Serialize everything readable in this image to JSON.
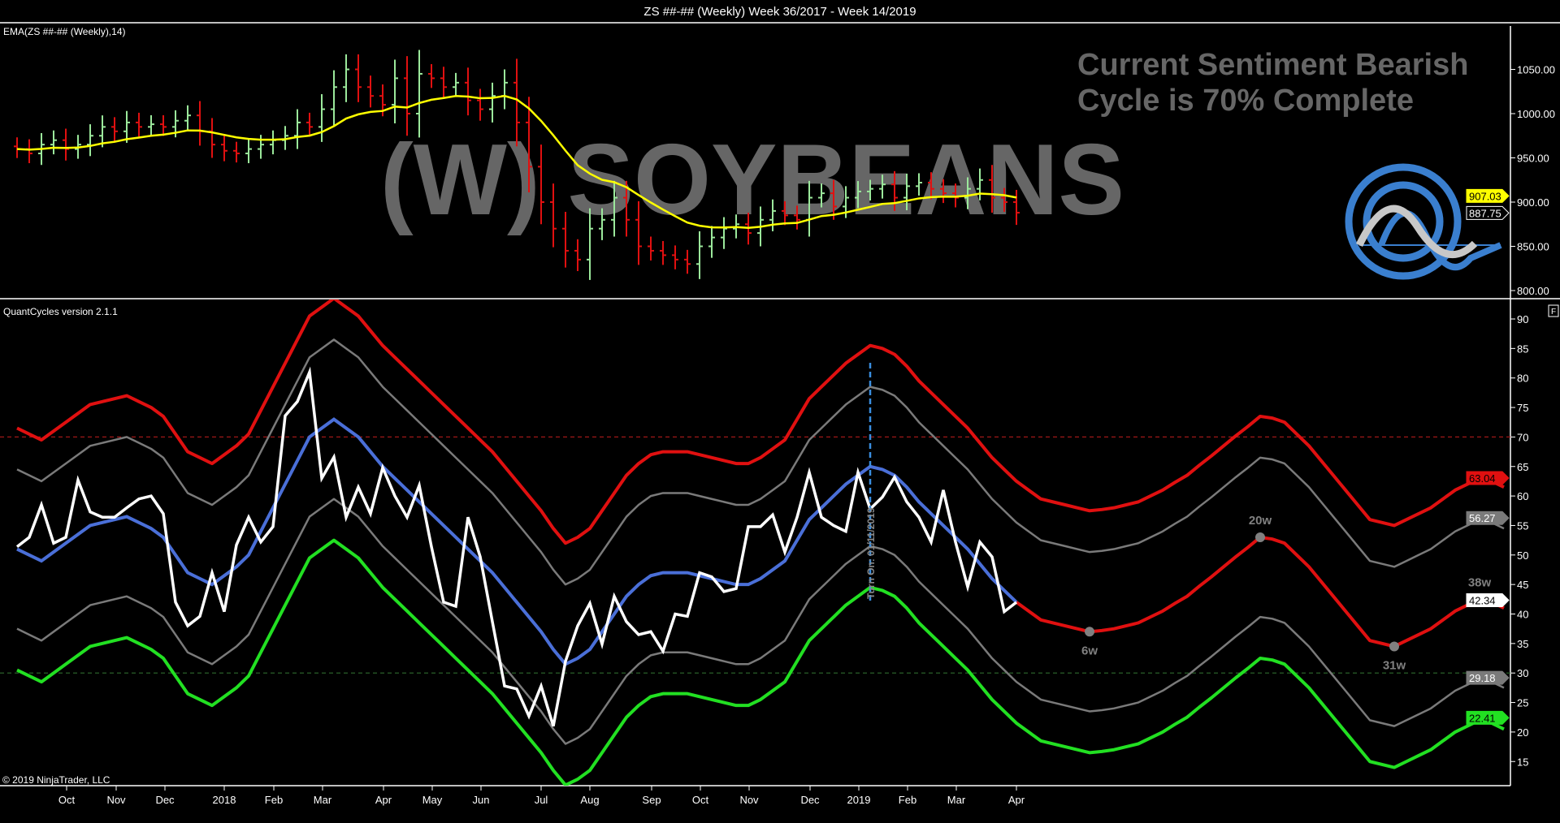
{
  "window_title": "ZS ##-## (Weekly)  Week 36/2017 - Week 14/2019",
  "copyright": "© 2019 NinjaTrader, LLC",
  "overlay": {
    "watermark": "(W) SOYBEANS",
    "sentiment": "Current Sentiment Bearish",
    "cycle": "Cycle is 70% Complete",
    "logo": "QuantCycles logo"
  },
  "colors": {
    "bg": "#000000",
    "up_bar": "#9be89b",
    "down_bar": "#e01010",
    "ema": "#ffff00",
    "upper_band": "#e01010",
    "inner_band": "#7a7a7a",
    "lower_band": "#22e022",
    "center": "#4a6fd8",
    "oscillator": "#ffffff",
    "projection": "#e01010",
    "turn_line": "#3a8ee0",
    "logo_blue": "#3a7fcf",
    "logo_gray": "#c8c8c8"
  },
  "chart_data": [
    {
      "type": "ohlc",
      "title": "EMA(ZS ##-## (Weekly),14)",
      "indicator": "EMA 14",
      "ylim": [
        790,
        1090
      ],
      "yticks": [
        "800.00",
        "850.00",
        "900.00",
        "950.00",
        "1000.00",
        "1050.00"
      ],
      "ytick_values": [
        800,
        850,
        900,
        950,
        1000,
        1050
      ],
      "close": [
        960,
        955,
        965,
        970,
        960,
        965,
        975,
        985,
        980,
        990,
        985,
        988,
        985,
        992,
        998,
        980,
        965,
        958,
        955,
        960,
        965,
        970,
        975,
        990,
        985,
        1005,
        1030,
        1050,
        1030,
        1020,
        1010,
        1040,
        1000,
        1045,
        1040,
        1030,
        1035,
        1015,
        1005,
        1020,
        1035,
        990,
        940,
        900,
        870,
        845,
        835,
        870,
        880,
        905,
        880,
        850,
        845,
        840,
        835,
        830,
        850,
        860,
        870,
        875,
        865,
        880,
        890,
        885,
        880,
        905,
        910,
        895,
        905,
        912,
        915,
        920,
        905,
        918,
        922,
        915,
        910,
        905,
        915,
        925,
        905,
        900,
        888
      ],
      "last_price_label": "887.75",
      "ema_label": "907.03",
      "grid": false
    },
    {
      "type": "line",
      "title": "QuantCycles version 2.1.1",
      "ylim": [
        11,
        93
      ],
      "yticks": [
        "15",
        "20",
        "25",
        "30",
        "35",
        "40",
        "45",
        "50",
        "55",
        "60",
        "65",
        "70",
        "75",
        "80",
        "85",
        "90"
      ],
      "ytick_values": [
        15,
        20,
        25,
        30,
        35,
        40,
        45,
        50,
        55,
        60,
        65,
        70,
        75,
        80,
        85,
        90
      ],
      "x_month_labels": [
        "Oct",
        "Nov",
        "Dec",
        "2018",
        "Feb",
        "Mar",
        "Apr",
        "May",
        "Jun",
        "Jul",
        "Aug",
        "Sep",
        "Oct",
        "Nov",
        "Dec",
        "2019",
        "Feb",
        "Mar",
        "Apr"
      ],
      "oscillator": [
        51.4,
        53,
        58.5,
        52,
        53,
        62.7,
        57.3,
        56.4,
        56.4,
        58,
        59.5,
        60,
        57,
        42,
        38,
        39.6,
        47,
        40.4,
        51.7,
        56.4,
        52.2,
        54.8,
        73.6,
        76,
        81,
        63,
        66.6,
        56.4,
        61.5,
        57,
        64.8,
        60,
        56.4,
        61.8,
        51.4,
        42,
        41.3,
        56.4,
        49.7,
        38.7,
        27.8,
        27.3,
        22.7,
        27.8,
        21,
        32,
        38,
        41.8,
        34.9,
        43,
        38.7,
        36.5,
        37,
        33.7,
        40,
        39.6,
        47,
        46.3,
        43.8,
        44.3,
        54.8,
        54.8,
        56.8,
        50.5,
        56.4,
        64,
        56.4,
        55,
        54,
        64,
        57.8,
        59.8,
        63.2,
        59,
        56.4,
        52.2,
        61,
        52.2,
        44.6,
        52.2,
        49.7,
        40.4,
        42
      ],
      "center": [
        51,
        50,
        49,
        50.5,
        52,
        53.5,
        55,
        55.5,
        56,
        56.5,
        55.5,
        54.5,
        53,
        50,
        47,
        46,
        45,
        46.5,
        48,
        50,
        54,
        58,
        62,
        66,
        70,
        71.5,
        73,
        71.5,
        70,
        67.5,
        65,
        63,
        61,
        59,
        57,
        55,
        53,
        51,
        49,
        47,
        44.5,
        42,
        39.5,
        37,
        34,
        31.5,
        32.5,
        34,
        37,
        40,
        43,
        45,
        46.5,
        47,
        47,
        47,
        46.5,
        46,
        45.5,
        45,
        45,
        46,
        47.5,
        49,
        52.5,
        56,
        58,
        60,
        62,
        63.5,
        65,
        64.5,
        63.5,
        61.5,
        59,
        57,
        55,
        53,
        51,
        48.5,
        46,
        44,
        42,
        40.5,
        39,
        38.5,
        38,
        37.5,
        37,
        37.2,
        37.5,
        38,
        38.5,
        39.5,
        40.5,
        41.8,
        43,
        44.7,
        46.3,
        48,
        49.7,
        51.3,
        53,
        52.7,
        52,
        50,
        48,
        45.5,
        43,
        40.5,
        38,
        35.5,
        35,
        34.5,
        35.5,
        36.5,
        37.5,
        39,
        40.5,
        41.5,
        42.5,
        42,
        41
      ],
      "band_offsets": {
        "upper": 20.5,
        "inner_upper": 13.5,
        "inner_lower": -13.5,
        "lower": -20.5
      },
      "overbought": 70,
      "oversold": 30,
      "cycle_markers": [
        {
          "label": "6w",
          "weeks_ahead": 6,
          "position": "below"
        },
        {
          "label": "20w",
          "weeks_ahead": 20,
          "position": "above"
        },
        {
          "label": "31w",
          "weeks_ahead": 31,
          "position": "below"
        },
        {
          "label": "38w",
          "weeks_ahead": 38,
          "position": "above"
        }
      ],
      "turn_line": {
        "label": "Turn On: 01/11/2019",
        "week_index": 70
      },
      "value_labels": [
        {
          "text": "63.04",
          "value": 63.04,
          "color": "#e01010",
          "text_color": "#000"
        },
        {
          "text": "56.27",
          "value": 56.27,
          "color": "#7a7a7a",
          "text_color": "#fff"
        },
        {
          "text": "42.34",
          "value": 42.34,
          "color": "#ffffff",
          "text_color": "#000"
        },
        {
          "text": "29.18",
          "value": 29.18,
          "color": "#7a7a7a",
          "text_color": "#fff"
        },
        {
          "text": "22.41",
          "value": 22.41,
          "color": "#22e022",
          "text_color": "#000"
        }
      ],
      "panel_button": "F"
    }
  ]
}
